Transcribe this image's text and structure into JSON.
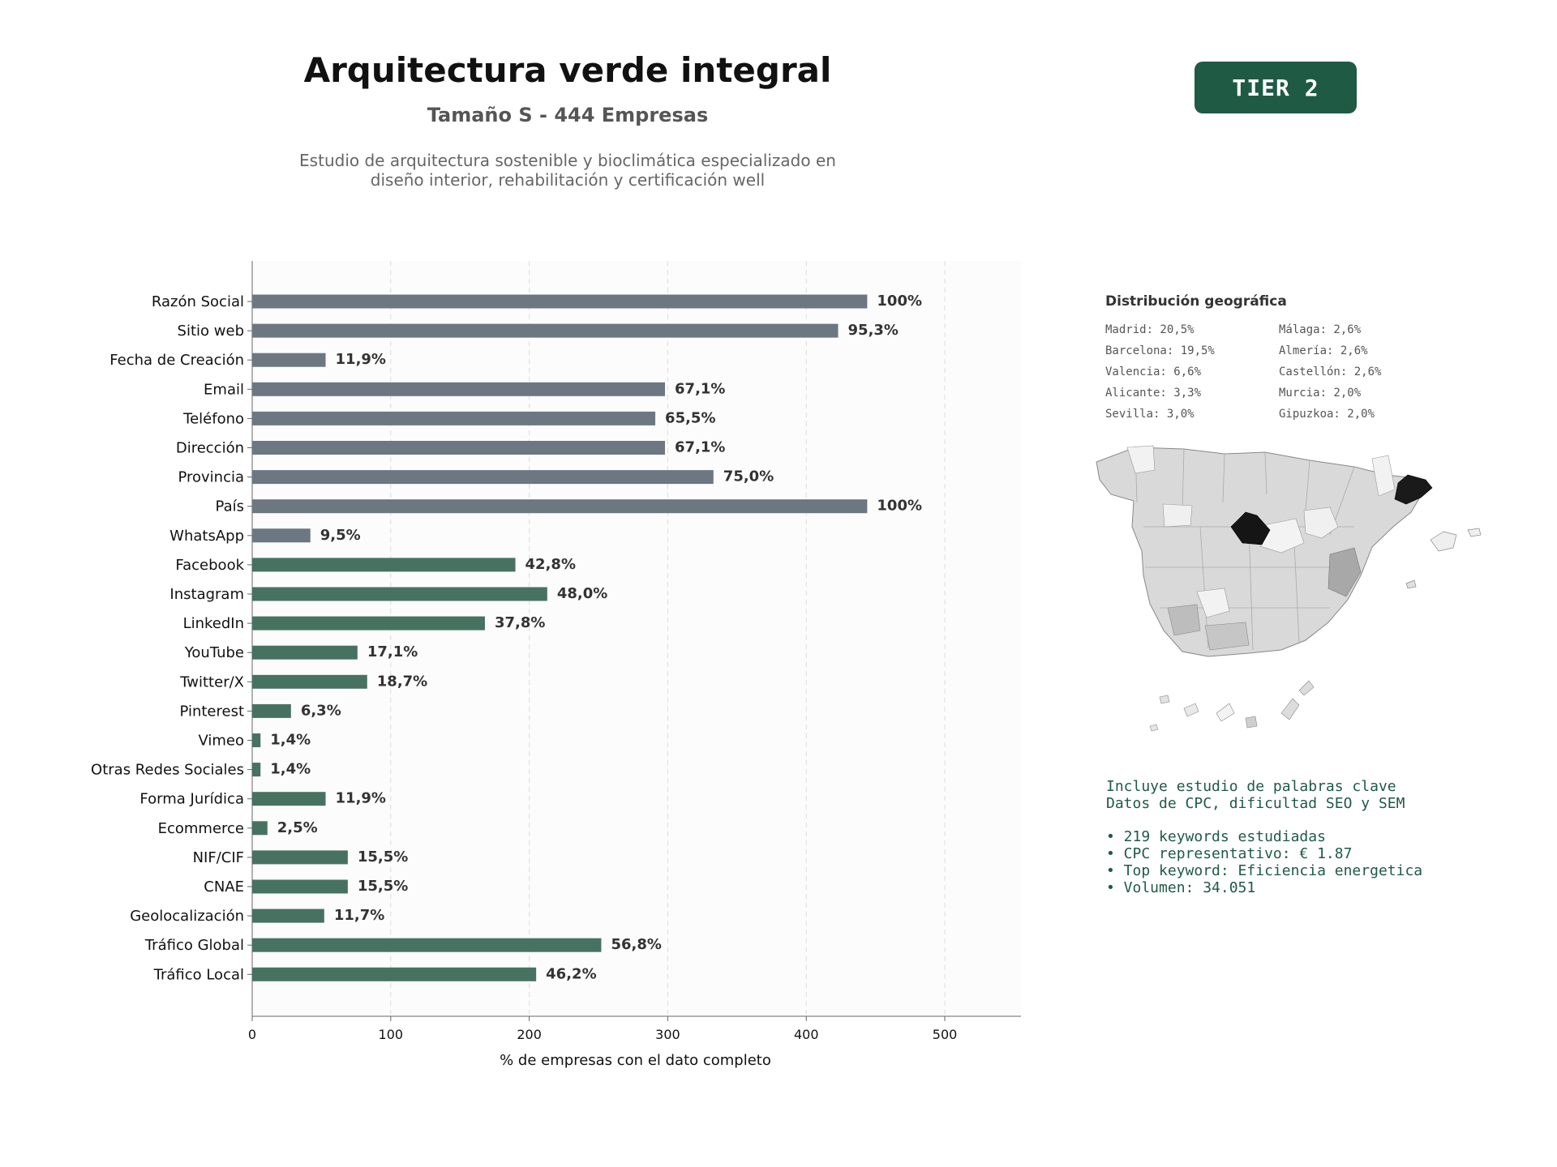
{
  "header": {
    "title": "Arquitectura verde integral",
    "subtitle": "Tamaño S - 444 Empresas",
    "description_line1": "Estudio de arquitectura sostenible y bioclimática especializado en",
    "description_line2": "diseño interior, rehabilitación y certificación well",
    "tier_badge": "TIER 2"
  },
  "colors": {
    "basic_bar": "#6c7782",
    "social_bar": "#477262",
    "accent": "#1f5a45"
  },
  "chart_data": {
    "type": "bar",
    "orientation": "horizontal",
    "xlabel": "% de empresas con el dato completo",
    "xlim": [
      0,
      555
    ],
    "xticks": [
      0,
      100,
      200,
      300,
      400,
      500
    ],
    "grid": true,
    "categories": [
      "Razón Social",
      "Sitio web",
      "Fecha de Creación",
      "Email",
      "Teléfono",
      "Dirección",
      "Provincia",
      "País",
      "WhatsApp",
      "Facebook",
      "Instagram",
      "LinkedIn",
      "YouTube",
      "Twitter/X",
      "Pinterest",
      "Vimeo",
      "Otras Redes Sociales",
      "Forma Jurídica",
      "Ecommerce",
      "NIF/CIF",
      "CNAE",
      "Geolocalización",
      "Tráfico Global",
      "Tráfico Local"
    ],
    "values": [
      444,
      423,
      53,
      298,
      291,
      298,
      333,
      444,
      42,
      190,
      213,
      168,
      76,
      83,
      28,
      6,
      6,
      53,
      11,
      69,
      69,
      52,
      252,
      205
    ],
    "labels": [
      "100%",
      "95,3%",
      "11,9%",
      "67,1%",
      "65,5%",
      "67,1%",
      "75,0%",
      "100%",
      "9,5%",
      "42,8%",
      "48,0%",
      "37,8%",
      "17,1%",
      "18,7%",
      "6,3%",
      "1,4%",
      "1,4%",
      "11,9%",
      "2,5%",
      "15,5%",
      "15,5%",
      "11,7%",
      "56,8%",
      "46,2%"
    ],
    "groups": [
      "basic",
      "basic",
      "basic",
      "basic",
      "basic",
      "basic",
      "basic",
      "basic",
      "basic",
      "social",
      "social",
      "social",
      "social",
      "social",
      "social",
      "social",
      "social",
      "social",
      "social",
      "social",
      "social",
      "social",
      "social",
      "social"
    ]
  },
  "geo": {
    "title": "Distribución geográfica",
    "items": [
      "Madrid: 20,5%",
      "Málaga: 2,6%",
      "Barcelona: 19,5%",
      "Almería: 2,6%",
      "Valencia: 6,6%",
      "Castellón: 2,6%",
      "Alicante: 3,3%",
      "Murcia: 2,0%",
      "Sevilla: 3,0%",
      "Gipuzkoa: 2,0%"
    ]
  },
  "keywords": {
    "line1": "Incluye estudio de palabras clave",
    "line2": "Datos de CPC, dificultad SEO y SEM",
    "bullets": [
      "• 219 keywords estudiadas",
      "• CPC representativo: € 1.87",
      "• Top keyword: Eficiencia energetica",
      "• Volumen: 34.051"
    ]
  }
}
